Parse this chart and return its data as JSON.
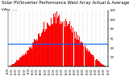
{
  "title": "Solar PV/Inverter Performance West Array Actual & Average Power Output",
  "subtitle": "kWac  ----",
  "bar_color": "#ff0000",
  "avg_line_color": "#0066ff",
  "bg_color": "#ffffff",
  "grid_color": "#999999",
  "title_fontsize": 3.8,
  "subtitle_fontsize": 3.0,
  "n_bars": 144,
  "avg_line_y": 0.4,
  "ylim": [
    0,
    1.0
  ],
  "bar_alpha": 1.0,
  "ytick_labels": [
    "1200",
    "1000",
    "800",
    "H:J:",
    "400",
    "200",
    ""
  ],
  "ytick_vals": [
    1.0,
    0.833,
    0.667,
    0.5,
    0.333,
    0.167,
    0.0
  ],
  "n_xticks": 24
}
